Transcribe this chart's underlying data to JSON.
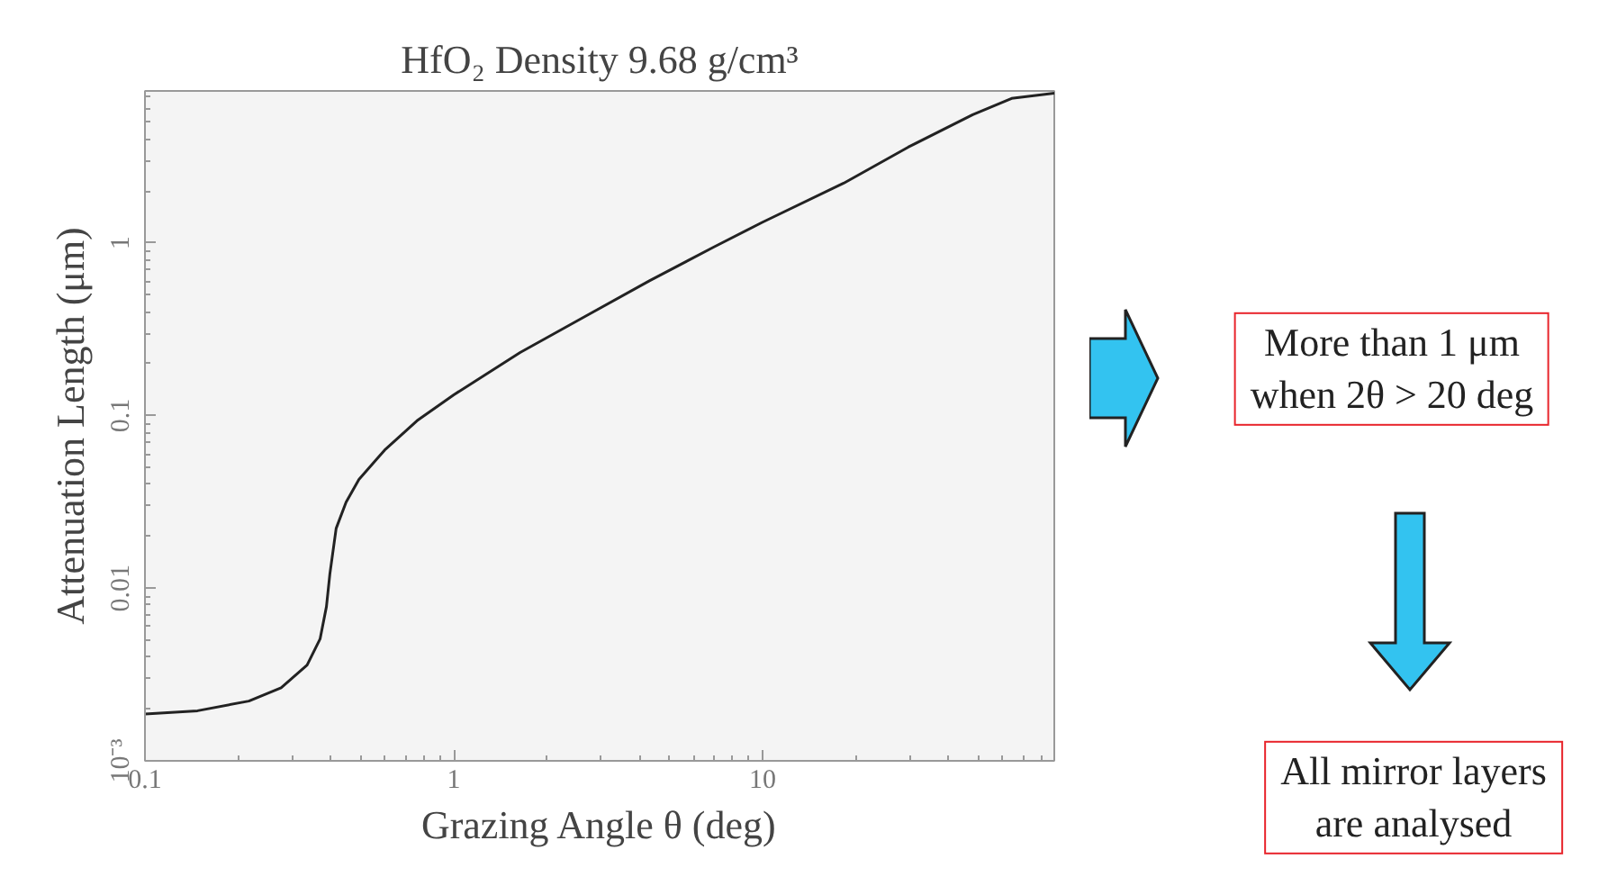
{
  "chart_data": {
    "type": "line",
    "title": "HfO₂ Density 9.68 g/cm³",
    "xlabel": "Grazing Angle θ (deg)",
    "ylabel": "Attenuation Length (μm)",
    "log": "xy",
    "grid": false,
    "marker": "none",
    "line_style": "solid",
    "xlim": [
      0.1,
      88
    ],
    "ylim": [
      0.001,
      7.6
    ],
    "xticks": [
      0.1,
      1,
      10
    ],
    "yticks": [
      {
        "value": 0.001,
        "label": "10⁻³"
      },
      0.01,
      0.1,
      1
    ],
    "series": [
      {
        "color": "#222222",
        "x": [
          0.1,
          0.148,
          0.217,
          0.276,
          0.335,
          0.369,
          0.387,
          0.397,
          0.416,
          0.448,
          0.493,
          0.597,
          0.76,
          1,
          1.64,
          2.66,
          4.3,
          6.96,
          10,
          18.3,
          29.6,
          47.9,
          64,
          88
        ],
        "values": [
          0.00187,
          0.00195,
          0.00222,
          0.00265,
          0.00359,
          0.00508,
          0.00783,
          0.0121,
          0.0222,
          0.0315,
          0.0427,
          0.0631,
          0.0933,
          0.132,
          0.232,
          0.375,
          0.604,
          0.949,
          1.32,
          2.22,
          3.59,
          5.54,
          6.88,
          7.38
        ]
      }
    ],
    "annotations": [
      "More than 1 μm\nwhen 2θ > 20 deg",
      "All mirror layers\nare analysed"
    ]
  }
}
